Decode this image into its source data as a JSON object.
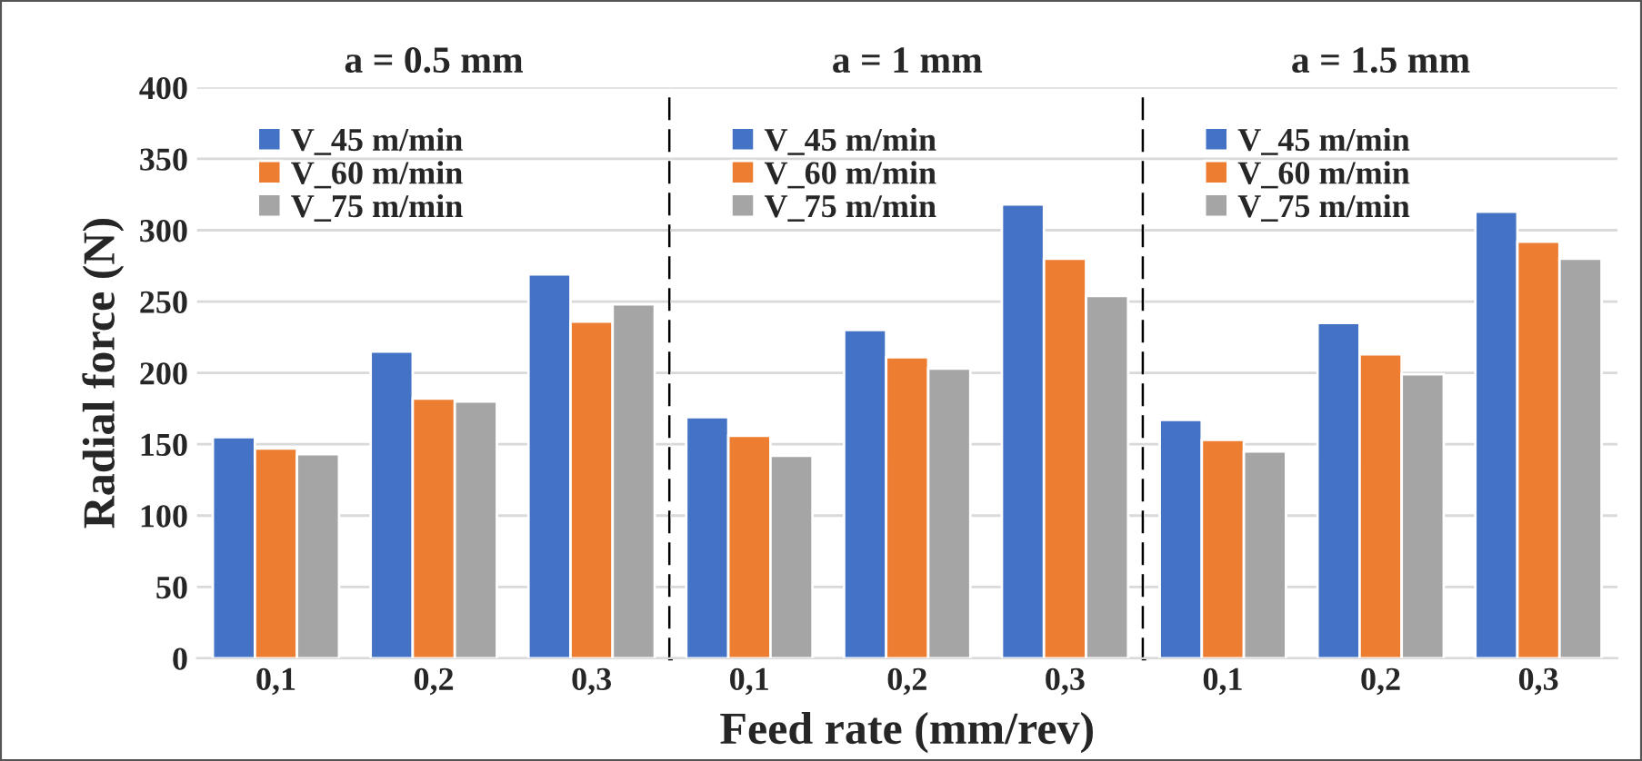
{
  "chart_data": [
    {
      "type": "bar",
      "title": "a = 0.5 mm",
      "ylabel": "Radial force (N)",
      "categories": [
        "0,1",
        "0,2",
        "0,3"
      ],
      "series": [
        {
          "name": "V_45 m/min",
          "color": "#4472c4",
          "values": [
            155,
            215,
            269
          ]
        },
        {
          "name": "V_60 m/min",
          "color": "#ed7d31",
          "values": [
            147,
            182,
            236
          ]
        },
        {
          "name": "V_75 m/min",
          "color": "#a5a5a5",
          "values": [
            143,
            180,
            248
          ]
        }
      ],
      "ylim": [
        0,
        400
      ],
      "yticks": [
        0,
        50,
        100,
        150,
        200,
        250,
        300,
        350,
        400
      ],
      "grid": "y",
      "legend": "top left"
    },
    {
      "type": "bar",
      "title": "a = 1 mm",
      "xlabel": "Feed rate (mm/rev)",
      "categories": [
        "0,1",
        "0,2",
        "0,3"
      ],
      "series": [
        {
          "name": "V_45 m/min",
          "color": "#4472c4",
          "values": [
            169,
            230,
            318
          ]
        },
        {
          "name": "V_60 m/min",
          "color": "#ed7d31",
          "values": [
            156,
            211,
            280
          ]
        },
        {
          "name": "V_75 m/min",
          "color": "#a5a5a5",
          "values": [
            142,
            203,
            254
          ]
        }
      ],
      "ylim": [
        0,
        400
      ],
      "yticks": [
        0,
        50,
        100,
        150,
        200,
        250,
        300,
        350,
        400
      ],
      "grid": "y",
      "legend": "top left",
      "tick_labels": "x"
    },
    {
      "type": "bar",
      "title": "a = 1.5 mm",
      "categories": [
        "0,1",
        "0,2",
        "0,3"
      ],
      "series": [
        {
          "name": "V_45 m/min",
          "color": "#4472c4",
          "values": [
            167,
            235,
            313
          ]
        },
        {
          "name": "V_60 m/min",
          "color": "#ed7d31",
          "values": [
            153,
            213,
            292
          ]
        },
        {
          "name": "V_75 m/min",
          "color": "#a5a5a5",
          "values": [
            145,
            199,
            280
          ]
        }
      ],
      "ylim": [
        0,
        400
      ],
      "yticks": [
        0,
        50,
        100,
        150,
        200,
        250,
        300,
        350,
        400
      ],
      "grid": "y",
      "legend": "top left",
      "tick_labels": "x"
    }
  ]
}
